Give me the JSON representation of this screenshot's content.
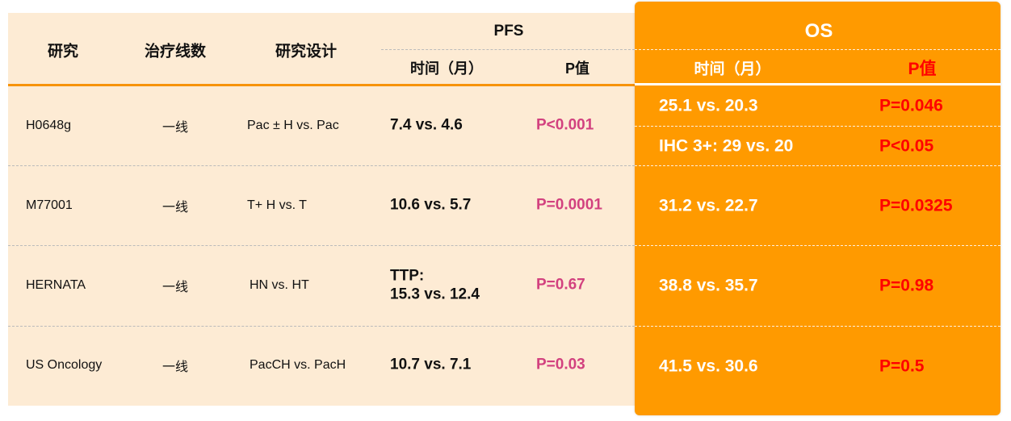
{
  "header": {
    "study": "研究",
    "lines": "治疗线数",
    "design": "研究设计",
    "pfs": "PFS",
    "os": "OS",
    "time": "时间（月）",
    "pvalue": "P值"
  },
  "rows": [
    {
      "study": "H0648g",
      "line": "一线",
      "design": "Pac ± H vs. Pac",
      "pfs_time": "7.4 vs. 4.6",
      "pfs_p": "P<0.001",
      "os_time": "25.1 vs. 20.3",
      "os_p": "P=0.046",
      "os_time2": "IHC 3+: 29 vs. 20",
      "os_p2": "P<0.05"
    },
    {
      "study": "M77001",
      "line": "一线",
      "design": "T+ H vs. T",
      "pfs_time": "10.6 vs. 5.7",
      "pfs_p": "P=0.0001",
      "os_time": "31.2 vs. 22.7",
      "os_p": "P=0.0325"
    },
    {
      "study": "HERNATA",
      "line": "一线",
      "design": "HN vs. HT",
      "pfs_time": "TTP:",
      "pfs_time2": "15.3 vs. 12.4",
      "pfs_p": "P=0.67",
      "os_time": "38.8 vs. 35.7",
      "os_p": "P=0.98"
    },
    {
      "study": "US Oncology",
      "line": "一线",
      "design": "PacCH vs. PacH",
      "pfs_time": "10.7 vs. 7.1",
      "pfs_p": "P=0.03",
      "os_time": "41.5 vs. 30.6",
      "os_p": "P=0.5"
    }
  ],
  "colors": {
    "table_bg": "#fdebd4",
    "accent": "#ff9a00",
    "pfs_p": "#d2417f",
    "os_p": "#ff0000"
  }
}
